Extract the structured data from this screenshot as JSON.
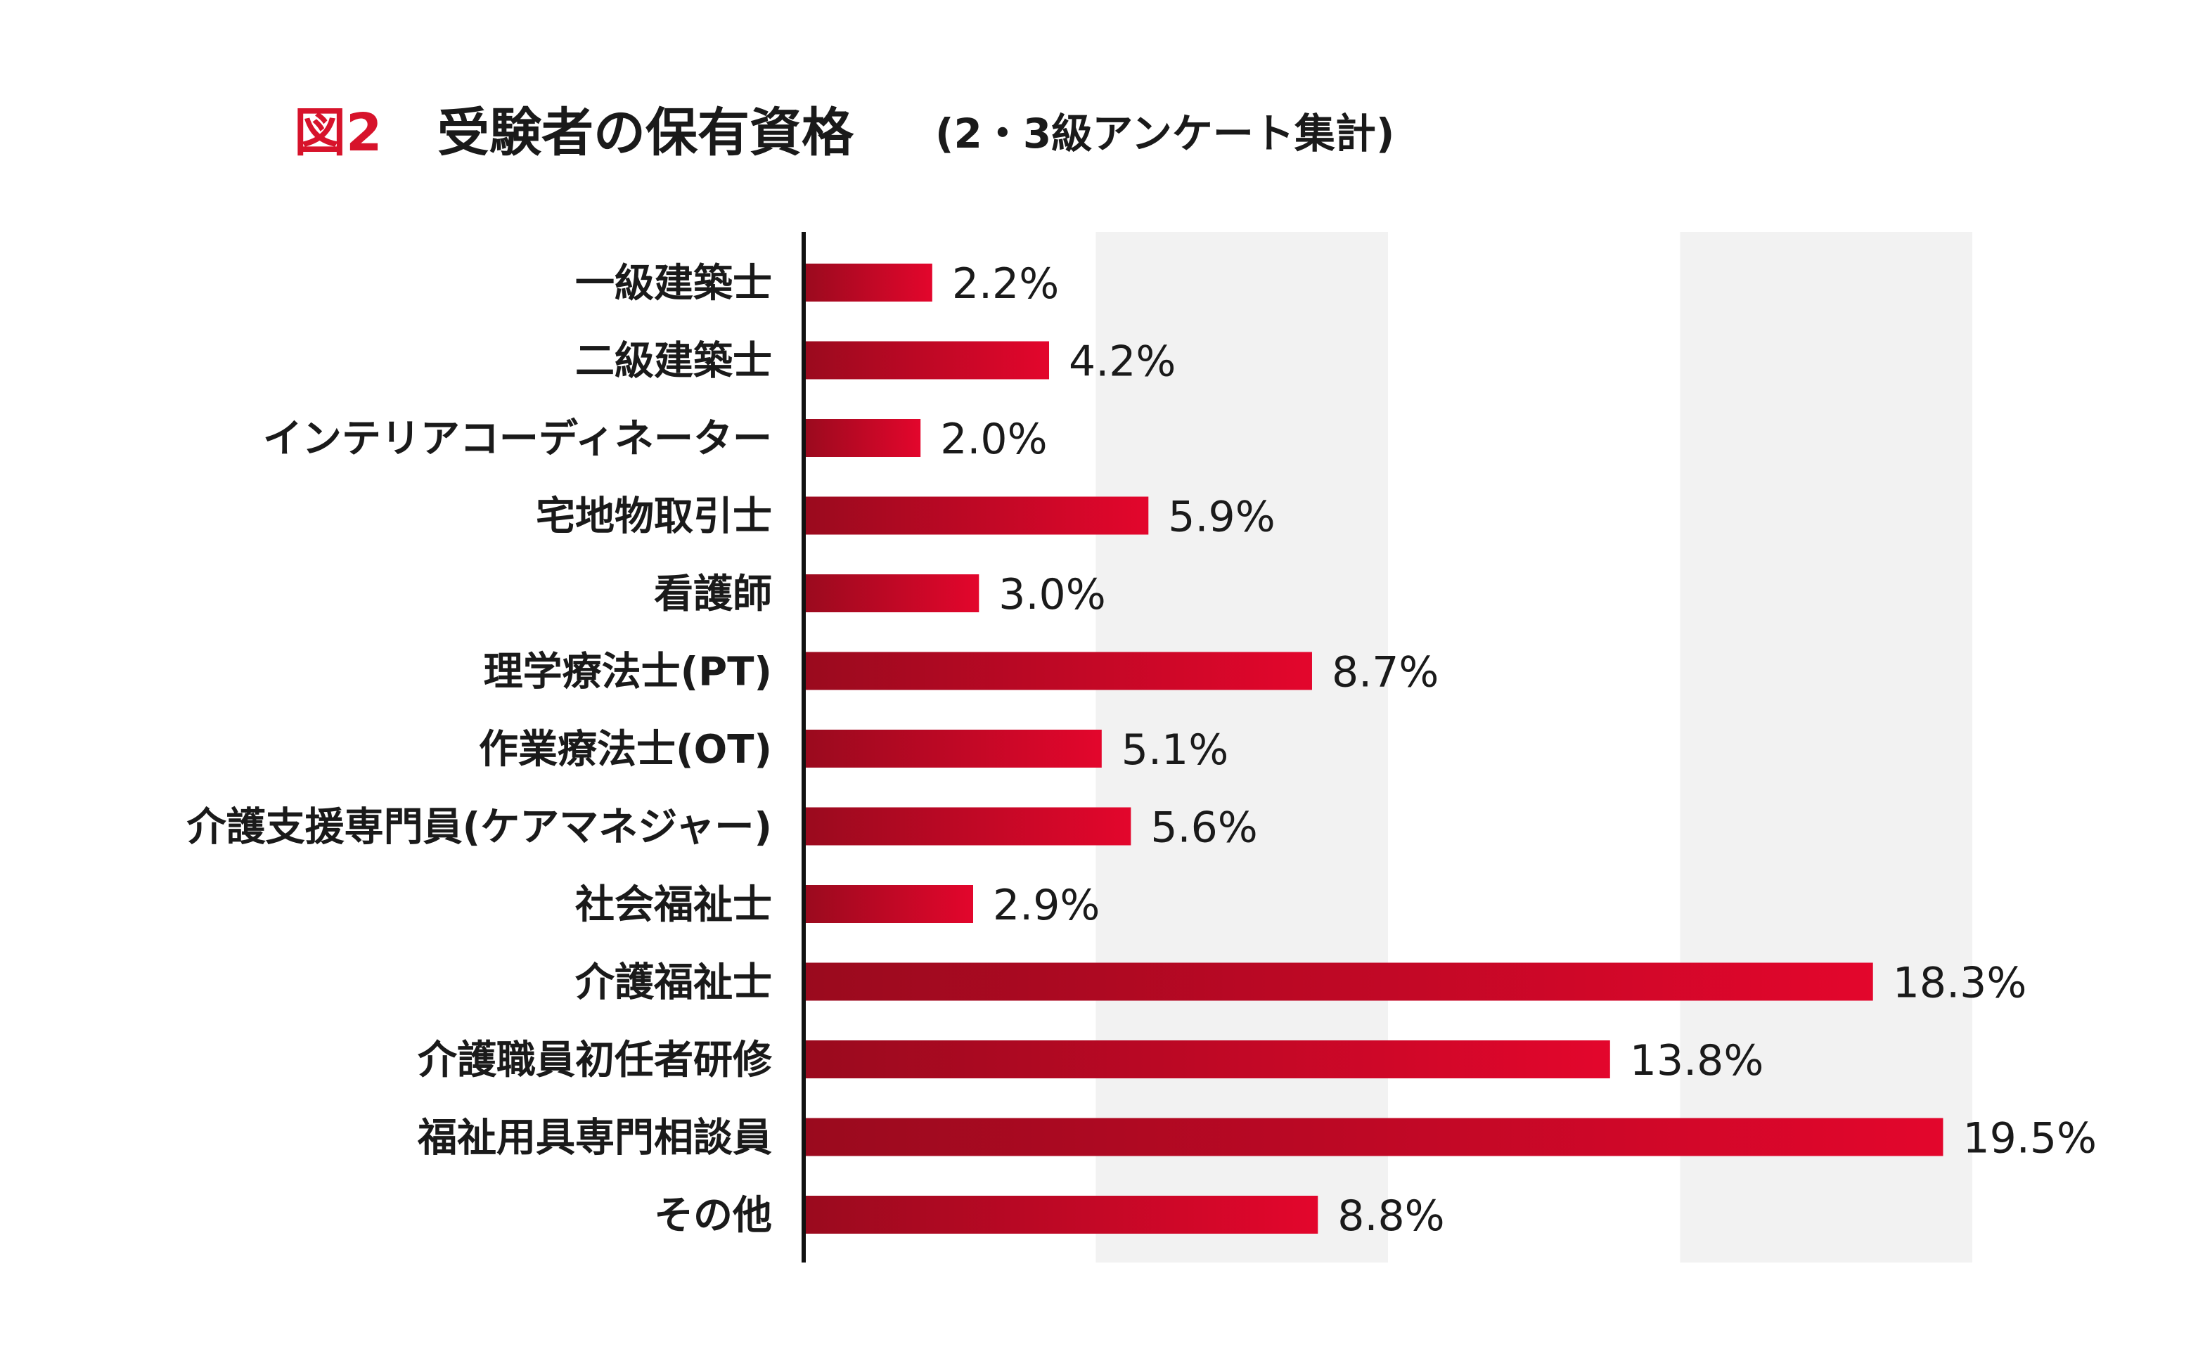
{
  "title": {
    "figure_label": "図2",
    "main": "受験者の保有資格",
    "sub": "(2・3級アンケート集計)"
  },
  "colors": {
    "accent": "#d7132b",
    "bar_dark": "#9a0a1e",
    "bar_light": "#e3062c",
    "band": "#f2f2f2",
    "axis": "#111111",
    "text": "#1a1a1a"
  },
  "chart_data": {
    "type": "bar",
    "orientation": "horizontal",
    "unit": "%",
    "xlim": [
      0,
      20
    ],
    "grid": false,
    "background_bands": [
      [
        5,
        10
      ],
      [
        15,
        20
      ]
    ],
    "categories": [
      "一級建築士",
      "二級建築士",
      "インテリアコーディネーター",
      "宅地物取引士",
      "看護師",
      "理学療法士(PT)",
      "作業療法士(OT)",
      "介護支援専門員(ケアマネジャー)",
      "社会福祉士",
      "介護福祉士",
      "介護職員初任者研修",
      "福祉用具専門相談員",
      "その他"
    ],
    "values": [
      2.2,
      4.2,
      2.0,
      5.9,
      3.0,
      8.7,
      5.1,
      5.6,
      2.9,
      18.3,
      13.8,
      19.5,
      8.8
    ],
    "value_labels": [
      "2.2%",
      "4.2%",
      "2.0%",
      "5.9%",
      "3.0%",
      "8.7%",
      "5.1%",
      "5.6%",
      "2.9%",
      "18.3%",
      "13.8%",
      "19.5%",
      "8.8%"
    ]
  }
}
